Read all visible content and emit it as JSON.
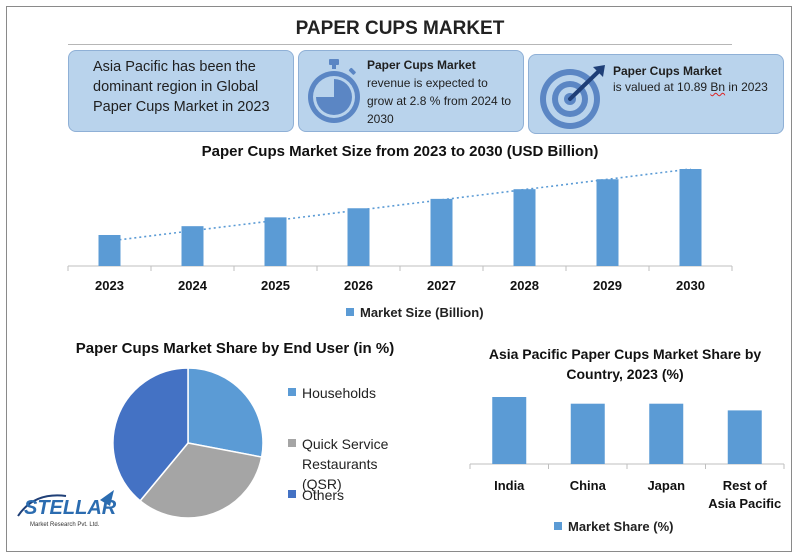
{
  "page": {
    "title": "PAPER CUPS MARKET"
  },
  "cards": {
    "card1": {
      "text": "Asia Pacific has been the dominant region in Global Paper Cups Market in 2023"
    },
    "card2": {
      "heading": "Paper Cups Market",
      "text": "revenue is expected to grow at 2.8 % from 2024 to 2030",
      "icon": "stopwatch-icon"
    },
    "card3": {
      "heading": "Paper Cups Market",
      "text_before": "is valued at 10.89 ",
      "text_underlined": "Bn",
      "text_after": " in 2023",
      "icon": "target-icon"
    }
  },
  "logo": {
    "name": "STELLAR",
    "tagline": "Market Research Pvt. Ltd."
  },
  "colors": {
    "bar": "#5b9bd5",
    "pie_households": "#5b9bd5",
    "pie_qsr": "#a5a5a5",
    "pie_others": "#4472c4",
    "card_bg": "#b9d3ec"
  },
  "chart_data": [
    {
      "type": "bar",
      "title": "Paper Cups Market Size from 2023 to 2030 (USD Billion)",
      "categories": [
        "2023",
        "2024",
        "2025",
        "2026",
        "2027",
        "2028",
        "2029",
        "2030"
      ],
      "series": [
        {
          "name": "Market Size (Billion)",
          "values": [
            10.89,
            11.2,
            11.51,
            11.83,
            12.16,
            12.5,
            12.85,
            13.21
          ]
        }
      ],
      "trendline": "dotted linear",
      "legend": "bottom"
    },
    {
      "type": "pie",
      "title": "Paper Cups Market Share by End User (in %)",
      "labels": [
        "Households",
        "Quick Service Restaurants (QSR)",
        "Others"
      ],
      "values": [
        28,
        33,
        39
      ],
      "legend": "right"
    },
    {
      "type": "bar",
      "title": "Asia Pacific Paper Cups Market  Share by Country, 2023 (%)",
      "categories": [
        "India",
        "China",
        "Japan",
        "Rest of Asia Pacific"
      ],
      "series": [
        {
          "name": "Market Share (%)",
          "values": [
            30,
            27,
            27,
            24
          ]
        }
      ],
      "legend": "bottom"
    }
  ]
}
